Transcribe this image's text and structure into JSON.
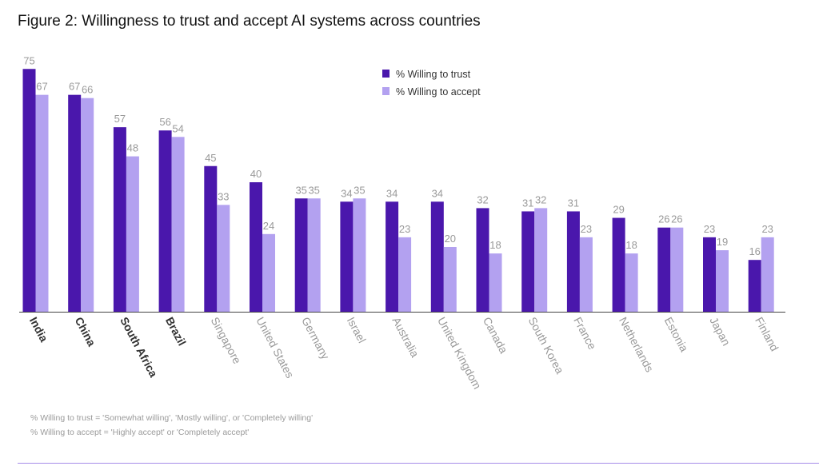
{
  "title": "Figure 2: Willingness to trust and accept AI systems across countries",
  "chart_data": {
    "type": "bar",
    "categories": [
      "India",
      "China",
      "South Africa",
      "Brazil",
      "Singapore",
      "United States",
      "Germany",
      "Israel",
      "Australia",
      "United Kingdom",
      "Canada",
      "South Korea",
      "France",
      "Netherlands",
      "Estonia",
      "Japan",
      "Finland"
    ],
    "bold_categories": [
      "India",
      "China",
      "South Africa",
      "Brazil"
    ],
    "series": [
      {
        "name": "% Willing to trust",
        "color": "#4a17ac",
        "values": [
          75,
          67,
          57,
          56,
          45,
          40,
          35,
          34,
          34,
          34,
          32,
          31,
          31,
          29,
          26,
          23,
          16
        ]
      },
      {
        "name": "% Willing to accept",
        "color": "#b3a1f0",
        "values": [
          67,
          66,
          48,
          54,
          33,
          24,
          35,
          35,
          23,
          20,
          18,
          32,
          23,
          18,
          26,
          19,
          23
        ]
      }
    ],
    "ylim": [
      0,
      80
    ],
    "legend_position": "top-center",
    "grid": false
  },
  "notes": [
    "% Willing to trust = 'Somewhat willing', 'Mostly willing', or 'Completely willing'",
    "% Willing to accept = 'Highly accept' or 'Completely accept'"
  ]
}
